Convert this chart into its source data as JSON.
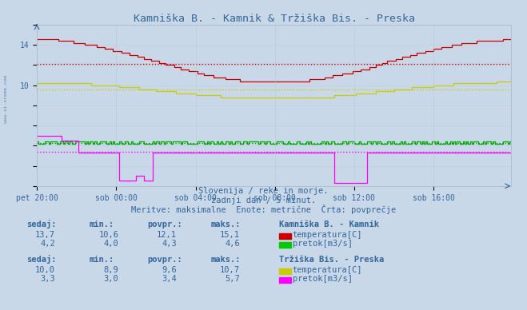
{
  "title": "Kamniška B. - Kamnik & Tržiška Bis. - Preska",
  "bg_color": "#c8d8e8",
  "plot_bg_color": "#c8d8e8",
  "text_color": "#336699",
  "subtitle1": "Slovenija / reke in morje.",
  "subtitle2": "zadnji dan / 5 minut.",
  "subtitle3": "Meritve: maksimalne  Enote: metrične  Črta: povprečje",
  "xlabel_ticks": [
    "pet 20:00",
    "sob 00:00",
    "sob 04:00",
    "sob 08:00",
    "sob 12:00",
    "sob 16:00"
  ],
  "ylim": [
    0,
    16
  ],
  "n_points": 288,
  "kamnik_temp_color": "#cc0000",
  "kamnik_flow_color": "#00aa00",
  "preska_temp_color": "#cccc00",
  "preska_flow_color": "#ff00ff",
  "kamnik_temp_avg": 12.1,
  "kamnik_flow_avg": 4.3,
  "preska_temp_avg": 9.6,
  "preska_flow_avg": 3.4,
  "legend_kamnik_temp_color": "#cc0000",
  "legend_kamnik_flow_color": "#00cc00",
  "legend_preska_temp_color": "#cccc00",
  "legend_preska_flow_color": "#ff00ff",
  "station1_name": "Kamniška B. - Kamnik",
  "station2_name": "Tržiška Bis. - Preska",
  "headers": [
    "sedaj:",
    "min.:",
    "povpr.:",
    "maks.:"
  ],
  "station1_temp_vals": [
    "13,7",
    "10,6",
    "12,1",
    "15,1"
  ],
  "station1_flow_vals": [
    "4,2",
    "4,0",
    "4,3",
    "4,6"
  ],
  "station2_temp_vals": [
    "10,0",
    "8,9",
    "9,6",
    "10,7"
  ],
  "station2_flow_vals": [
    "3,3",
    "3,0",
    "3,4",
    "5,7"
  ],
  "temp_label": "temperatura[C]",
  "flow_label": "pretok[m3/s]"
}
